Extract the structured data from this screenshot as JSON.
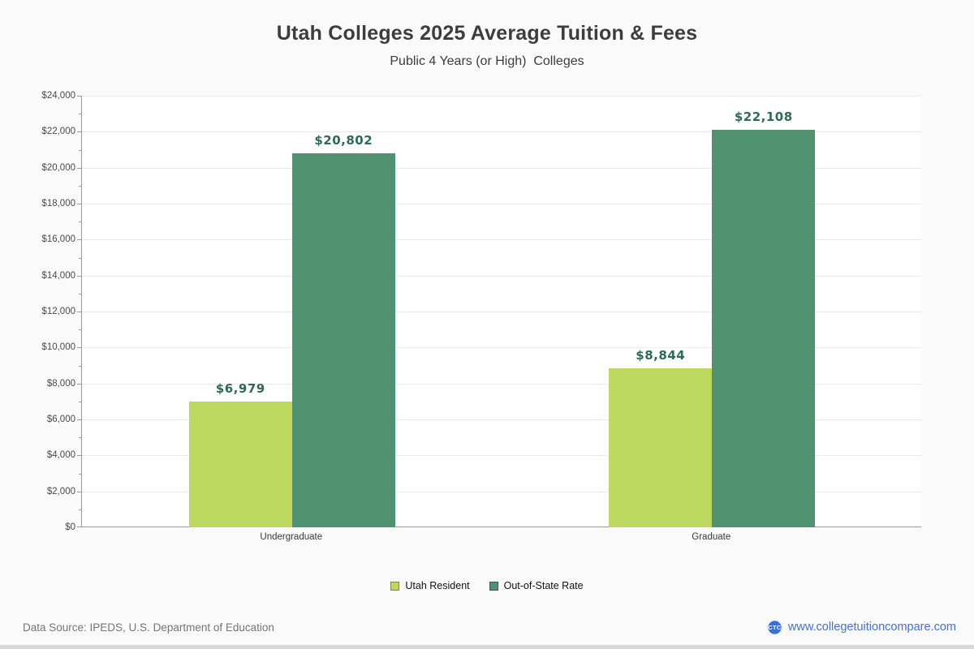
{
  "header": {
    "title": "Utah Colleges 2025 Average Tuition & Fees",
    "subtitle": "Public 4 Years (or High)  Colleges"
  },
  "chart_data": {
    "type": "bar",
    "title": "Utah Colleges 2025 Average Tuition & Fees",
    "subtitle": "Public 4 Years (or High)  Colleges",
    "categories": [
      "Undergraduate",
      "Graduate"
    ],
    "series": [
      {
        "name": "Utah Resident",
        "values": [
          6979,
          8844
        ],
        "labels": [
          "$6,979",
          "$8,844"
        ],
        "color": "#bcd85e"
      },
      {
        "name": "Out-of-State Rate",
        "values": [
          20802,
          22108
        ],
        "labels": [
          "$20,802",
          "$22,108"
        ],
        "color": "#4f9170"
      }
    ],
    "xlabel": "",
    "ylabel": "",
    "ylim": [
      0,
      24000
    ],
    "y_tick_step": 2000,
    "y_minor_tick_step": 1000,
    "y_tick_labels": [
      "$0",
      "$2,000",
      "$4,000",
      "$6,000",
      "$8,000",
      "$10,000",
      "$12,000",
      "$14,000",
      "$16,000",
      "$18,000",
      "$20,000",
      "$22,000",
      "$24,000"
    ],
    "grid": true,
    "legend_position": "bottom",
    "value_label_color": "#2e6b52"
  },
  "footer": {
    "source": "Data Source: IPEDS, U.S. Department of Education",
    "site": "www.collegetuitioncompare.com",
    "logo_text": "CTC"
  }
}
